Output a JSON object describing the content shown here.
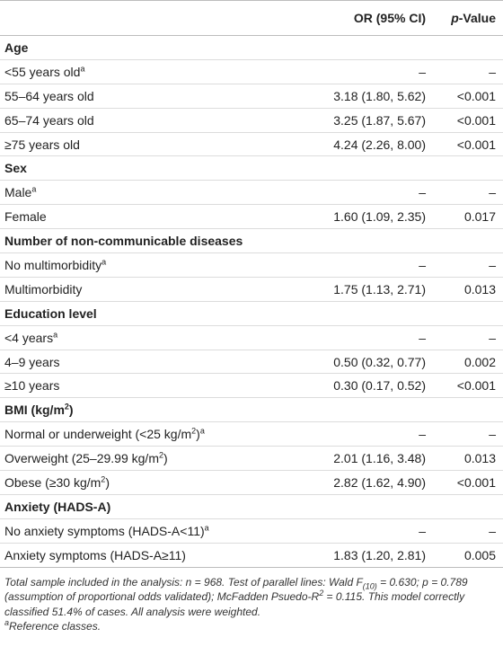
{
  "header": {
    "col_or": "OR (95% CI)",
    "col_p_ital": "p",
    "col_p_rest": "-Value"
  },
  "rows": [
    {
      "type": "section",
      "label": "Age"
    },
    {
      "type": "row",
      "label": "<55 years old",
      "sup": "a",
      "or": "–",
      "p": "–"
    },
    {
      "type": "row",
      "label": "55–64 years old",
      "or": "3.18 (1.80, 5.62)",
      "p": "<0.001"
    },
    {
      "type": "row",
      "label": "65–74 years old",
      "or": "3.25 (1.87, 5.67)",
      "p": "<0.001"
    },
    {
      "type": "row",
      "label": "≥75 years old",
      "or": "4.24 (2.26, 8.00)",
      "p": "<0.001"
    },
    {
      "type": "section",
      "label": "Sex"
    },
    {
      "type": "row",
      "label": "Male",
      "sup": "a",
      "or": "–",
      "p": "–"
    },
    {
      "type": "row",
      "label": "Female",
      "or": "1.60 (1.09, 2.35)",
      "p": "0.017"
    },
    {
      "type": "section",
      "label": "Number of non-communicable diseases"
    },
    {
      "type": "row",
      "label": "No multimorbidity",
      "sup": "a",
      "or": "–",
      "p": "–"
    },
    {
      "type": "row",
      "label": "Multimorbidity",
      "or": "1.75 (1.13, 2.71)",
      "p": "0.013"
    },
    {
      "type": "section",
      "label": "Education level"
    },
    {
      "type": "row",
      "label": "<4 years",
      "sup": "a",
      "or": "–",
      "p": "–"
    },
    {
      "type": "row",
      "label": "4–9 years",
      "or": "0.50 (0.32, 0.77)",
      "p": "0.002"
    },
    {
      "type": "row",
      "label": "≥10 years",
      "or": "0.30 (0.17, 0.52)",
      "p": "<0.001"
    },
    {
      "type": "section",
      "label": "BMI (kg/m",
      "sup_mid": "2",
      "label_after": ")"
    },
    {
      "type": "row",
      "label": "Normal or underweight (<25 kg/m",
      "sup_mid": "2",
      "label_after": ")",
      "sup": "a",
      "or": "–",
      "p": "–"
    },
    {
      "type": "row",
      "label": "Overweight (25–29.99 kg/m",
      "sup_mid": "2",
      "label_after": ")",
      "or": "2.01 (1.16, 3.48)",
      "p": "0.013"
    },
    {
      "type": "row",
      "label": "Obese (≥30 kg/m",
      "sup_mid": "2",
      "label_after": ")",
      "or": "2.82 (1.62, 4.90)",
      "p": "<0.001"
    },
    {
      "type": "section",
      "label": "Anxiety (HADS-A)"
    },
    {
      "type": "row",
      "label": "No anxiety symptoms (HADS-A<11)",
      "sup": "a",
      "or": "–",
      "p": "–"
    },
    {
      "type": "row",
      "label": "Anxiety symptoms (HADS-A≥11)",
      "or": "1.83 (1.20, 2.81)",
      "p": "0.005"
    }
  ],
  "footnote": {
    "parts": [
      "Total sample included in the analysis: n = 968. Test of parallel lines: Wald F",
      "(10)",
      " = 0.630; p = 0.789 (assumption of proportional odds validated); McFadden Psuedo-R",
      "2",
      " = 0.115. This model correctly classified 51.4% of cases. All analysis were weighted."
    ],
    "ref_sup": "a",
    "ref_text": "Reference classes."
  }
}
